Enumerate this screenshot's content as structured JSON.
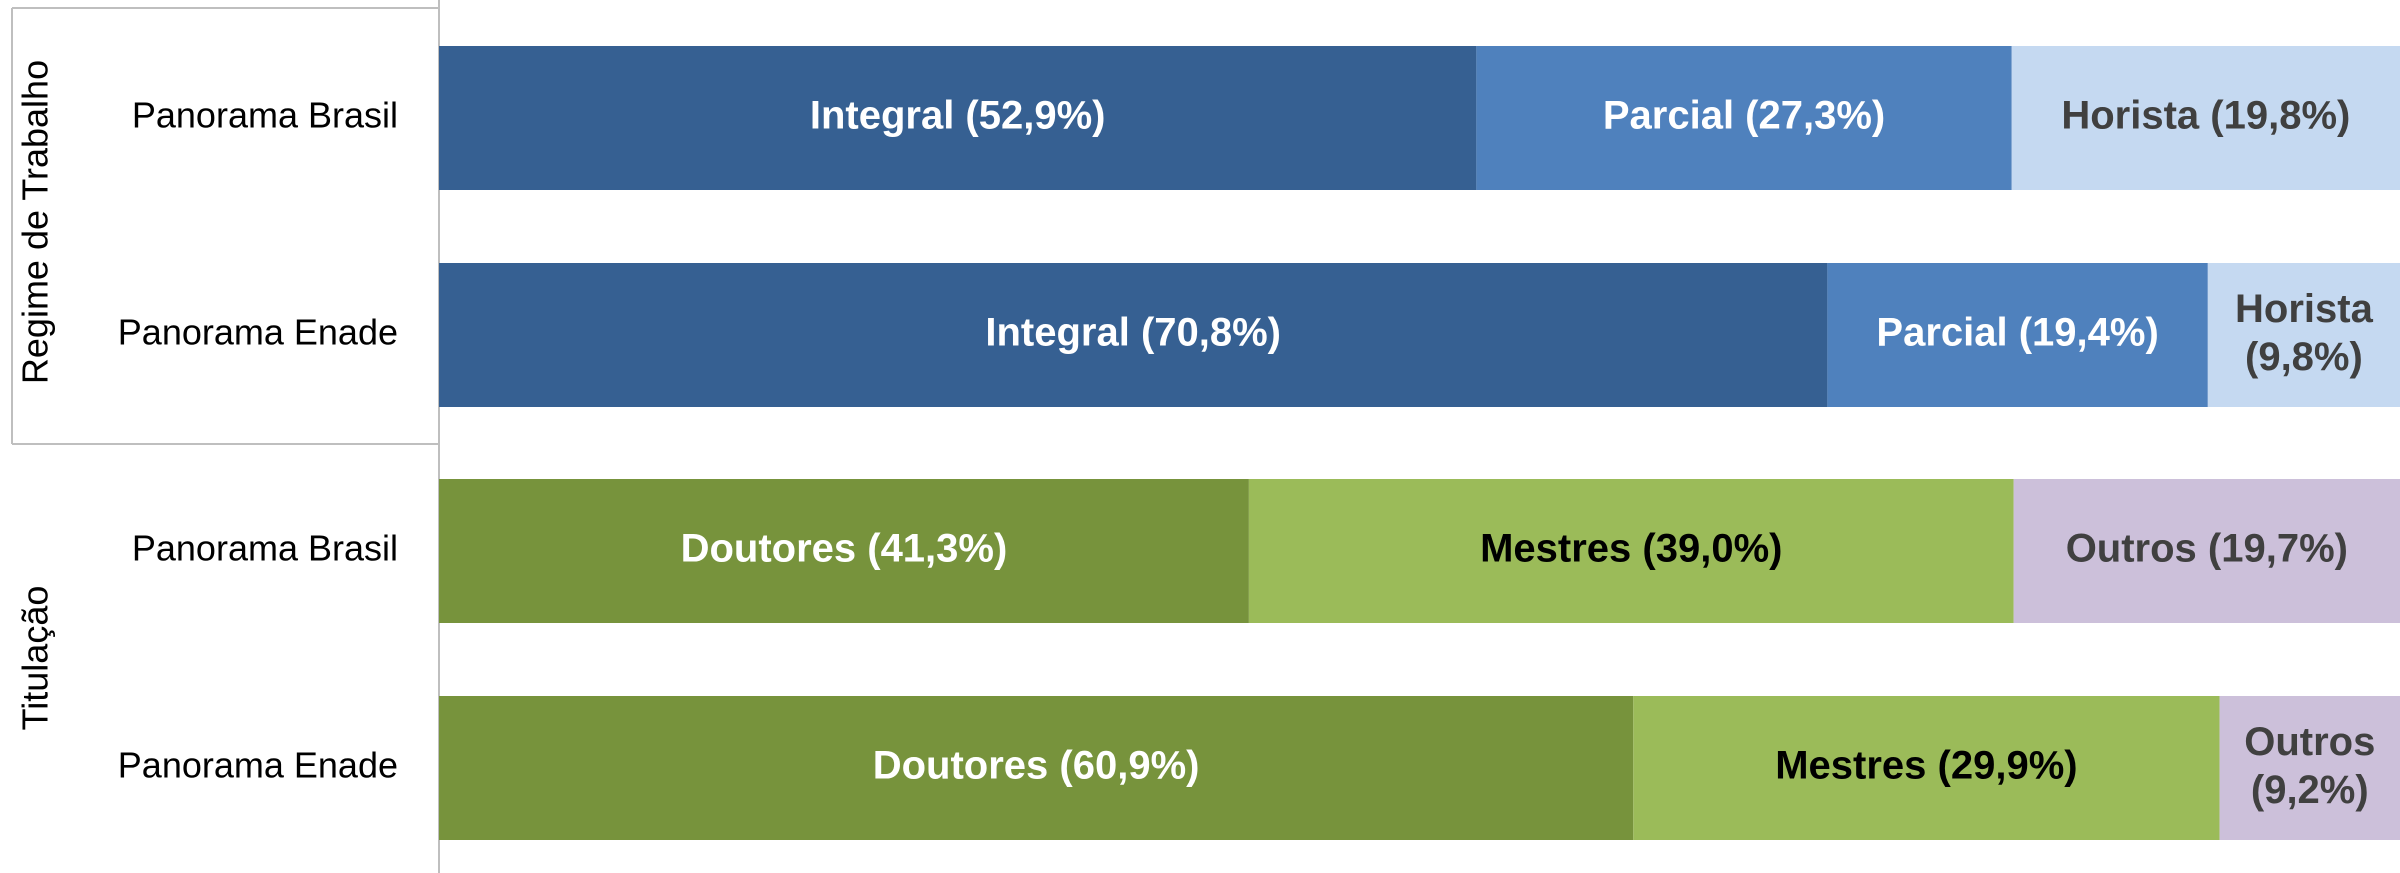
{
  "chart_data": [
    {
      "type": "bar",
      "orientation": "horizontal",
      "stacked": true,
      "group": "Regime de Trabalho",
      "categories": [
        "Panorama Brasil",
        "Panorama Enade"
      ],
      "xlim": [
        0,
        100
      ],
      "series": [
        {
          "color": "#366092",
          "label_color": "#ffffff",
          "values": [
            52.9,
            70.8
          ],
          "value_labels": [
            "Integral (52,9%)",
            "Integral (70,8%)"
          ]
        },
        {
          "color": "#4f81bd",
          "label_color": "#ffffff",
          "values": [
            27.3,
            19.4
          ],
          "value_labels": [
            "Parcial (27,3%)",
            "Parcial (19,4%)"
          ]
        },
        {
          "color": "#c5d9f1",
          "label_color": "#404040",
          "values": [
            19.8,
            9.8
          ],
          "value_labels": [
            "Horista (19,8%)",
            "Horista (9,8%)"
          ]
        }
      ]
    },
    {
      "type": "bar",
      "orientation": "horizontal",
      "stacked": true,
      "group": "Titulação",
      "categories": [
        "Panorama Brasil",
        "Panorama Enade"
      ],
      "xlim": [
        0,
        100
      ],
      "series": [
        {
          "color": "#77933c",
          "label_color": "#ffffff",
          "values": [
            41.3,
            60.9
          ],
          "value_labels": [
            "Doutores (41,3%)",
            "Doutores (60,9%)"
          ]
        },
        {
          "color": "#9bbb59",
          "label_color": "#000000",
          "values": [
            39.0,
            29.9
          ],
          "value_labels": [
            "Mestres (39,0%)",
            "Mestres (29,9%)"
          ]
        },
        {
          "color": "#ccc0da",
          "label_color": "#404040",
          "values": [
            19.7,
            9.2
          ],
          "value_labels": [
            "Outros (19,7%)",
            "Outros (9,2%)"
          ]
        }
      ]
    }
  ]
}
